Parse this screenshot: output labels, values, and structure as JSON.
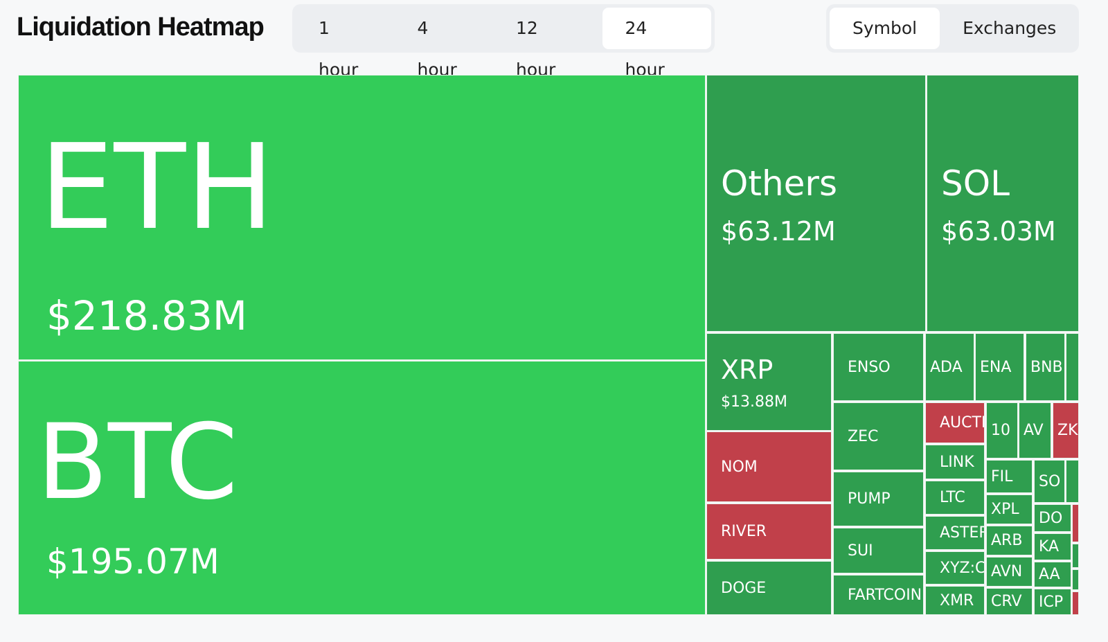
{
  "header": {
    "title": "Liquidation Heatmap"
  },
  "time_tabs": {
    "options": [
      "1 hour",
      "4 hour",
      "12 hour",
      "24 hour"
    ],
    "selected": 3
  },
  "view_tabs": {
    "options": [
      "Symbol",
      "Exchanges"
    ],
    "selected": 0
  },
  "treemap": {
    "tiles": [
      {
        "label": "ETH",
        "value": "$218.83M",
        "color": "#33cc59"
      },
      {
        "label": "BTC",
        "value": "$195.07M",
        "color": "#33cc59"
      },
      {
        "label": "Others",
        "value": "$63.12M",
        "color": "#2f9e4f"
      },
      {
        "label": "SOL",
        "value": "$63.03M",
        "color": "#2f9e4f"
      },
      {
        "label": "XRP",
        "value": "$13.88M",
        "color": "#2f9e4f"
      },
      {
        "label": "NOM",
        "color": "#c1404a"
      },
      {
        "label": "RIVER",
        "color": "#c1404a"
      },
      {
        "label": "DOGE",
        "color": "#2f9e4f"
      },
      {
        "label": "ENSO",
        "color": "#2f9e4f"
      },
      {
        "label": "ZEC",
        "color": "#2f9e4f"
      },
      {
        "label": "PUMP",
        "color": "#2f9e4f"
      },
      {
        "label": "SUI",
        "color": "#2f9e4f"
      },
      {
        "label": "FARTCOIN",
        "color": "#2f9e4f"
      },
      {
        "label": "ADA",
        "color": "#2f9e4f"
      },
      {
        "label": "ENA",
        "color": "#2f9e4f"
      },
      {
        "label": "BNB",
        "color": "#2f9e4f"
      },
      {
        "label": "AUCTI",
        "color": "#c1404a"
      },
      {
        "label": "LINK",
        "color": "#2f9e4f"
      },
      {
        "label": "LTC",
        "color": "#2f9e4f"
      },
      {
        "label": "ASTER",
        "color": "#2f9e4f"
      },
      {
        "label": "XYZ:C",
        "color": "#2f9e4f"
      },
      {
        "label": "XMR",
        "color": "#2f9e4f"
      },
      {
        "label": "10",
        "color": "#2f9e4f"
      },
      {
        "label": "AV",
        "color": "#2f9e4f"
      },
      {
        "label": "ZK",
        "color": "#c1404a"
      },
      {
        "label": "FIL",
        "color": "#2f9e4f"
      },
      {
        "label": "SO",
        "color": "#2f9e4f"
      },
      {
        "label": "XPL",
        "color": "#2f9e4f"
      },
      {
        "label": "ARB",
        "color": "#2f9e4f"
      },
      {
        "label": "AVN",
        "color": "#2f9e4f"
      },
      {
        "label": "CRV",
        "color": "#2f9e4f"
      },
      {
        "label": "DO",
        "color": "#2f9e4f"
      },
      {
        "label": "KA",
        "color": "#2f9e4f"
      },
      {
        "label": "AA",
        "color": "#2f9e4f"
      },
      {
        "label": "ICP",
        "color": "#2f9e4f"
      }
    ]
  }
}
